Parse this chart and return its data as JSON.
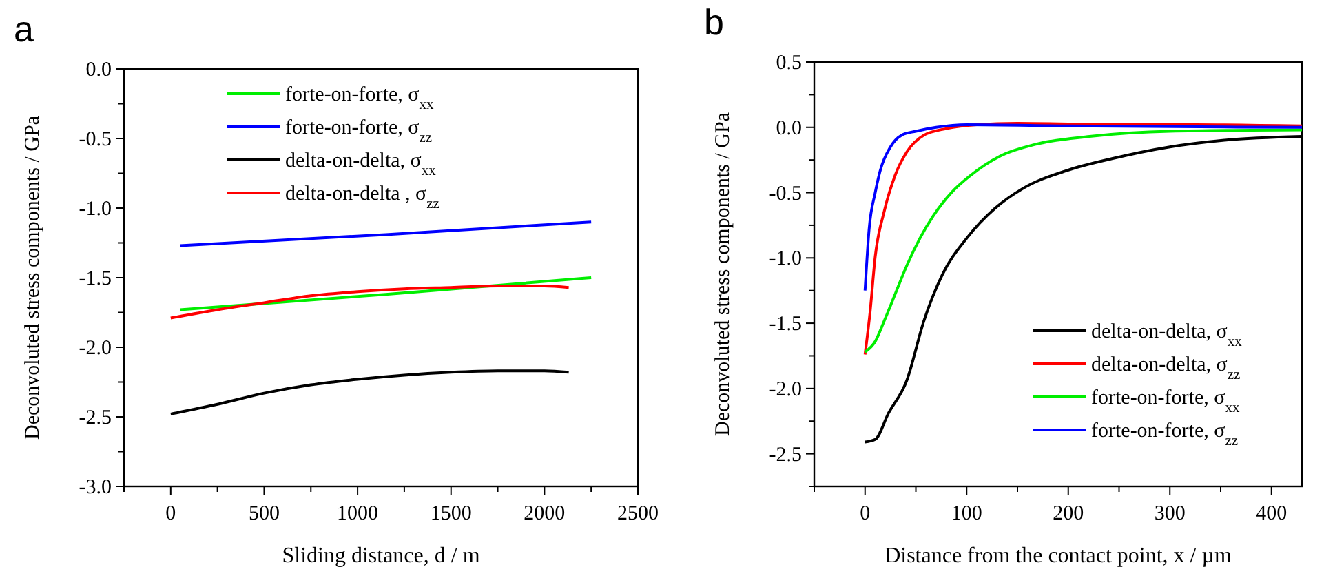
{
  "chart_data": [
    {
      "type": "line",
      "title": "a",
      "xlabel": "Sliding distance, d / m",
      "ylabel": "Deconvoluted stress components / GPa",
      "xlim": [
        -250,
        2500
      ],
      "ylim": [
        -3,
        0
      ],
      "xticks": [
        {
          "value": -250,
          "label": null
        },
        0,
        {
          "value": 250,
          "label": null
        },
        500,
        {
          "value": 750,
          "label": null
        },
        1000,
        {
          "value": 1250,
          "label": null
        },
        1500,
        {
          "value": 1750,
          "label": null
        },
        2000,
        {
          "value": 2250,
          "label": null
        },
        2500
      ],
      "yticks": [
        {
          "value": -3,
          "label": "-3.0"
        },
        {
          "value": -2.75,
          "label": null
        },
        {
          "value": -2.5,
          "label": "-2.5"
        },
        {
          "value": -2.25,
          "label": null
        },
        {
          "value": -2,
          "label": "-2.0"
        },
        {
          "value": -1.75,
          "label": null
        },
        {
          "value": -1.5,
          "label": "-1.5"
        },
        {
          "value": -1.25,
          "label": null
        },
        {
          "value": -1,
          "label": "-1.0"
        },
        {
          "value": -0.75,
          "label": null
        },
        {
          "value": -0.5,
          "label": "-0.5"
        },
        {
          "value": -0.25,
          "label": null
        },
        {
          "value": 0,
          "label": "0.0"
        }
      ],
      "legend": "top left",
      "grid": false,
      "marker": "none",
      "line_style": "solid",
      "series": [
        {
          "name": "forte-on-forte, σ$_{xx}$",
          "color": "#00ee00",
          "x": [
            50,
            1150,
            2250
          ],
          "values": [
            -1.73,
            -1.62,
            -1.5
          ]
        },
        {
          "name": "forte-on-forte, σ$_{zz}$",
          "color": "#0000ff",
          "x": [
            50,
            1150,
            2250
          ],
          "values": [
            -1.27,
            -1.19,
            -1.1
          ]
        },
        {
          "name": "delta-on-delta, σ$_{xx}$",
          "color": "#000000",
          "x": [
            0,
            250,
            500,
            750,
            1000,
            1250,
            1500,
            1750,
            2000,
            2130
          ],
          "values": [
            -2.48,
            -2.41,
            -2.33,
            -2.27,
            -2.23,
            -2.2,
            -2.18,
            -2.17,
            -2.17,
            -2.18
          ]
        },
        {
          "name": "delta-on-delta , σ$_{zz}$",
          "color": "#ff0000",
          "x": [
            0,
            250,
            500,
            750,
            1000,
            1250,
            1500,
            1750,
            2000,
            2130
          ],
          "values": [
            -1.79,
            -1.73,
            -1.68,
            -1.63,
            -1.6,
            -1.58,
            -1.57,
            -1.56,
            -1.56,
            -1.57
          ]
        }
      ]
    },
    {
      "type": "line",
      "title": "b",
      "xlabel": "Distance from the contact point, x / µm",
      "ylabel": "Deconvoluted stress components / GPa",
      "xlim": [
        -50,
        430
      ],
      "ylim": [
        -2.75,
        0.5
      ],
      "xticks": [
        {
          "value": -50,
          "label": null
        },
        0,
        {
          "value": 50,
          "label": null
        },
        100,
        {
          "value": 150,
          "label": null
        },
        200,
        {
          "value": 250,
          "label": null
        },
        300,
        {
          "value": 350,
          "label": null
        },
        400
      ],
      "yticks": [
        {
          "value": -2.75,
          "label": null
        },
        {
          "value": -2.5,
          "label": "-2.5"
        },
        {
          "value": -2.25,
          "label": null
        },
        {
          "value": -2,
          "label": "-2.0"
        },
        {
          "value": -1.75,
          "label": null
        },
        {
          "value": -1.5,
          "label": "-1.5"
        },
        {
          "value": -1.25,
          "label": null
        },
        {
          "value": -1,
          "label": "-1.0"
        },
        {
          "value": -0.75,
          "label": null
        },
        {
          "value": -0.5,
          "label": "-0.5"
        },
        {
          "value": -0.25,
          "label": null
        },
        {
          "value": 0,
          "label": "0.0"
        },
        {
          "value": 0.25,
          "label": null
        },
        {
          "value": 0.5,
          "label": "0.5"
        }
      ],
      "legend": "right",
      "grid": false,
      "marker": "none",
      "line_style": "solid",
      "series": [
        {
          "name": "delta-on-delta, σ$_{xx}$",
          "color": "#000000",
          "x": [
            0,
            10,
            23,
            41,
            58,
            76,
            100,
            128,
            155,
            199,
            243,
            300,
            352,
            430
          ],
          "values": [
            -2.41,
            -2.39,
            -2.19,
            -1.94,
            -1.48,
            -1.13,
            -0.85,
            -0.62,
            -0.47,
            -0.33,
            -0.24,
            -0.15,
            -0.1,
            -0.07
          ]
        },
        {
          "name": "delta-on-delta, σ$_{zz}$",
          "color": "#ff0000",
          "x": [
            0,
            5,
            10,
            19,
            30,
            41,
            58,
            80,
            110,
            150,
            250,
            325,
            430
          ],
          "values": [
            -1.74,
            -1.41,
            -0.99,
            -0.64,
            -0.36,
            -0.19,
            -0.06,
            -0.01,
            0.02,
            0.03,
            0.02,
            0.02,
            0.01
          ]
        },
        {
          "name": "forte-on-forte, σ$_{xx}$",
          "color": "#00ee00",
          "x": [
            0,
            10,
            19,
            30,
            41,
            54,
            67,
            85,
            102,
            133,
            168,
            221,
            300,
            430
          ],
          "values": [
            -1.72,
            -1.64,
            -1.48,
            -1.27,
            -1.06,
            -0.85,
            -0.68,
            -0.5,
            -0.38,
            -0.22,
            -0.13,
            -0.07,
            -0.03,
            -0.02
          ]
        },
        {
          "name": "forte-on-forte, σ$_{zz}$",
          "color": "#0000ff",
          "x": [
            0,
            4,
            10,
            15,
            25,
            36,
            50,
            70,
            100,
            200,
            430
          ],
          "values": [
            -1.25,
            -0.78,
            -0.5,
            -0.33,
            -0.15,
            -0.06,
            -0.03,
            0,
            0.02,
            0.01,
            0
          ]
        }
      ]
    }
  ]
}
